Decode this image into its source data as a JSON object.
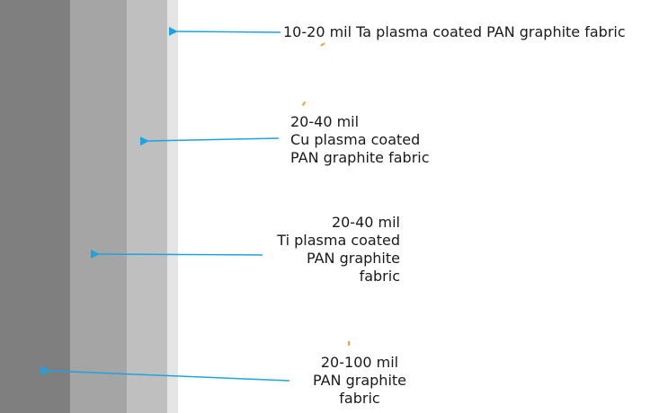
{
  "layers": [
    {
      "id": "layer-base",
      "color": "#7f7f7f"
    },
    {
      "id": "layer-ti",
      "color": "#a5a5a5"
    },
    {
      "id": "layer-cu",
      "color": "#bfbfbf"
    },
    {
      "id": "layer-ta",
      "color": "#e4e4e4"
    }
  ],
  "arrow_color": "#1fa2e0",
  "labels": {
    "ta": {
      "line1": "10-20 mil Ta plasma coated PAN graphite fabric"
    },
    "cu": {
      "line1": "20-40 mil",
      "line2": "Cu plasma coated",
      "line3": "PAN graphite fabric"
    },
    "ti": {
      "line1": "20-40 mil",
      "line2": "Ti plasma coated",
      "line3": "PAN graphite",
      "line4": "fabric"
    },
    "base": {
      "line1": "20-100 mil",
      "line2": "PAN graphite",
      "line3": "fabric"
    }
  }
}
